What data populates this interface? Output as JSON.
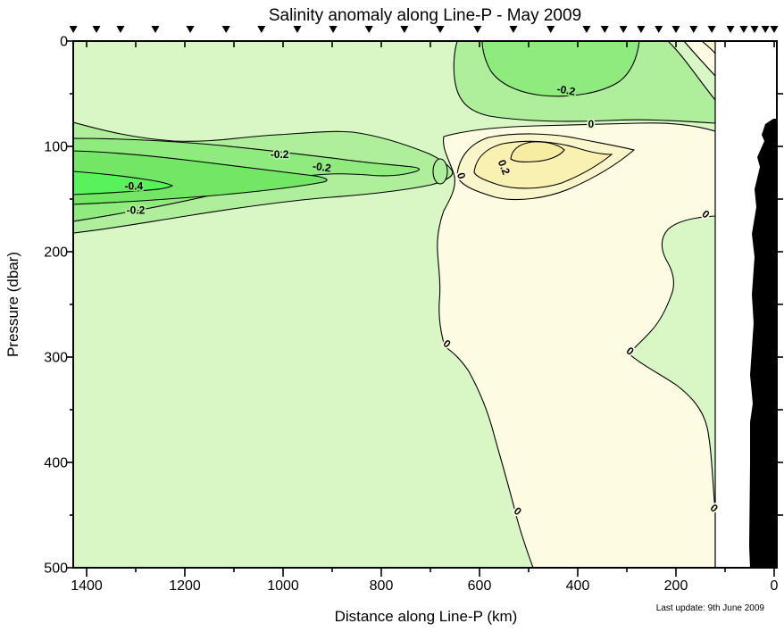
{
  "page": {
    "title": "Salinity anomaly along Line-P - May 2009"
  },
  "footnote": "Last update: 9th June 2009",
  "chart_data": {
    "type": "filled_contour",
    "title": "Salinity anomaly along Line-P - May 2009",
    "variable": "Salinity anomaly",
    "xlabel": "Distance along Line-P (km)",
    "ylabel": "Pressure (dbar)",
    "x_axis": {
      "units": "km",
      "min": 0,
      "max": 1428,
      "reversed": true,
      "major_ticks": [
        1400,
        1200,
        1000,
        800,
        600,
        400,
        200,
        0
      ],
      "minor_ticks": [
        1300,
        1100,
        900,
        700,
        500,
        300,
        100
      ],
      "top_tick_interval": 100
    },
    "y_axis": {
      "units": "dbar",
      "min": 0,
      "max": 500,
      "major_ticks": [
        0,
        100,
        200,
        300,
        400,
        500
      ],
      "minor_ticks": [
        50,
        150,
        250,
        350,
        450
      ],
      "right_tick_interval": 50
    },
    "contour_interval": 0.1,
    "levels": [
      -0.4,
      -0.3,
      -0.2,
      -0.1,
      0,
      0.1,
      0.2,
      0.3
    ],
    "labeled_levels": [
      -0.4,
      -0.2,
      0,
      0.2
    ],
    "fill_bands": [
      {
        "range": "<= -0.4",
        "color": "#58F35A"
      },
      {
        "range": "-0.4 to -0.3",
        "color": "#73E765"
      },
      {
        "range": "-0.3 to -0.2",
        "color": "#90EB7F"
      },
      {
        "range": "-0.2 to -0.1",
        "color": "#AFEF9C"
      },
      {
        "range": "-0.1 to 0",
        "color": "#D9F6C5"
      },
      {
        "range": "0 to 0.1",
        "color": "#FDFCE3"
      },
      {
        "range": "0.1 to 0.2",
        "color": "#FAF6CB"
      },
      {
        "range": "0.2 to 0.3",
        "color": "#F8F1B2"
      },
      {
        "range": ">= 0.3",
        "color": "#F6EDA0"
      }
    ],
    "palette": {
      "neg4": "#58F35A",
      "neg3": "#73E765",
      "neg2": "#90EB7F",
      "neg1": "#AFEF9C",
      "zero": "#D9F6C5",
      "pos0": "#FDFCE3",
      "pos1": "#FAF6CB",
      "pos2": "#F8F1B2",
      "pos3": "#F6EDA0",
      "land": "#000000",
      "frame": "#000000",
      "background": "#FFFFFF"
    },
    "contour_labels": [
      {
        "text": "-0.2",
        "km": 1007,
        "dbar": 111,
        "rot": 0,
        "halo": "#AFEF9C"
      },
      {
        "text": "-0.2",
        "km": 922,
        "dbar": 123,
        "rot": 8,
        "halo": "#90EB7F"
      },
      {
        "text": "-0.4",
        "km": 1304,
        "dbar": 141,
        "rot": 0,
        "halo": "#73E765"
      },
      {
        "text": "-0.2",
        "km": 1300,
        "dbar": 164,
        "rot": 0,
        "halo": "#AFEF9C"
      },
      {
        "text": "-0.2",
        "km": 425,
        "dbar": 50,
        "rot": 10,
        "halo": "#90EB7F"
      },
      {
        "text": "0",
        "km": 373,
        "dbar": 82,
        "rot": 0,
        "halo": "#D9F6C5"
      },
      {
        "text": "0.2",
        "km": 557,
        "dbar": 121,
        "rot": 68,
        "halo": "#F8F1B2"
      },
      {
        "text": "0",
        "km": 644,
        "dbar": 129,
        "rot": 72,
        "halo": "#FDFCE3"
      },
      {
        "text": "0",
        "km": 144,
        "dbar": 167,
        "rot": 40,
        "halo": "#FDFCE3"
      },
      {
        "text": "0",
        "km": 671,
        "dbar": 290,
        "rot": 40,
        "halo": "#FDFCE3"
      },
      {
        "text": "0",
        "km": 298,
        "dbar": 297,
        "rot": 40,
        "halo": "#FDFCE3"
      },
      {
        "text": "0",
        "km": 527,
        "dbar": 449,
        "rot": 40,
        "halo": "#FDFCE3"
      },
      {
        "text": "0",
        "km": 127,
        "dbar": 446,
        "rot": 40,
        "halo": "#FDFCE3"
      }
    ],
    "station_markers": {
      "symbol": "filled_down_triangle",
      "positions_km": [
        1427,
        1380,
        1331,
        1260,
        1189,
        1116,
        1044,
        971,
        898,
        825,
        753,
        680,
        604,
        531,
        455,
        382,
        345,
        307,
        271,
        235,
        200,
        164,
        127,
        89,
        62,
        40,
        18,
        0
      ]
    },
    "land_mask": {
      "present": true,
      "side": "right_near_coast",
      "color": "#000000"
    },
    "features": [
      {
        "description": "Fresh anomaly core below -0.4",
        "km_range": "1225-1428",
        "dbar_range": "125-145"
      },
      {
        "description": "Fresh anomaly lobe -0.2 along 100-170 dbar",
        "km_range": "700-1428",
        "dbar_range": "95-180"
      },
      {
        "description": "Near-surface fresh anomaly -0.2",
        "km_range": "275-595",
        "dbar_range": "0-55"
      },
      {
        "description": "Salty anomaly core above +0.3 near 100 dbar",
        "km_range": "427-536",
        "dbar_range": "96-112"
      },
      {
        "description": "Positive anomaly pool (>0) mid-section to depth",
        "km_range": "120-670",
        "dbar_range": "80-500"
      }
    ]
  }
}
